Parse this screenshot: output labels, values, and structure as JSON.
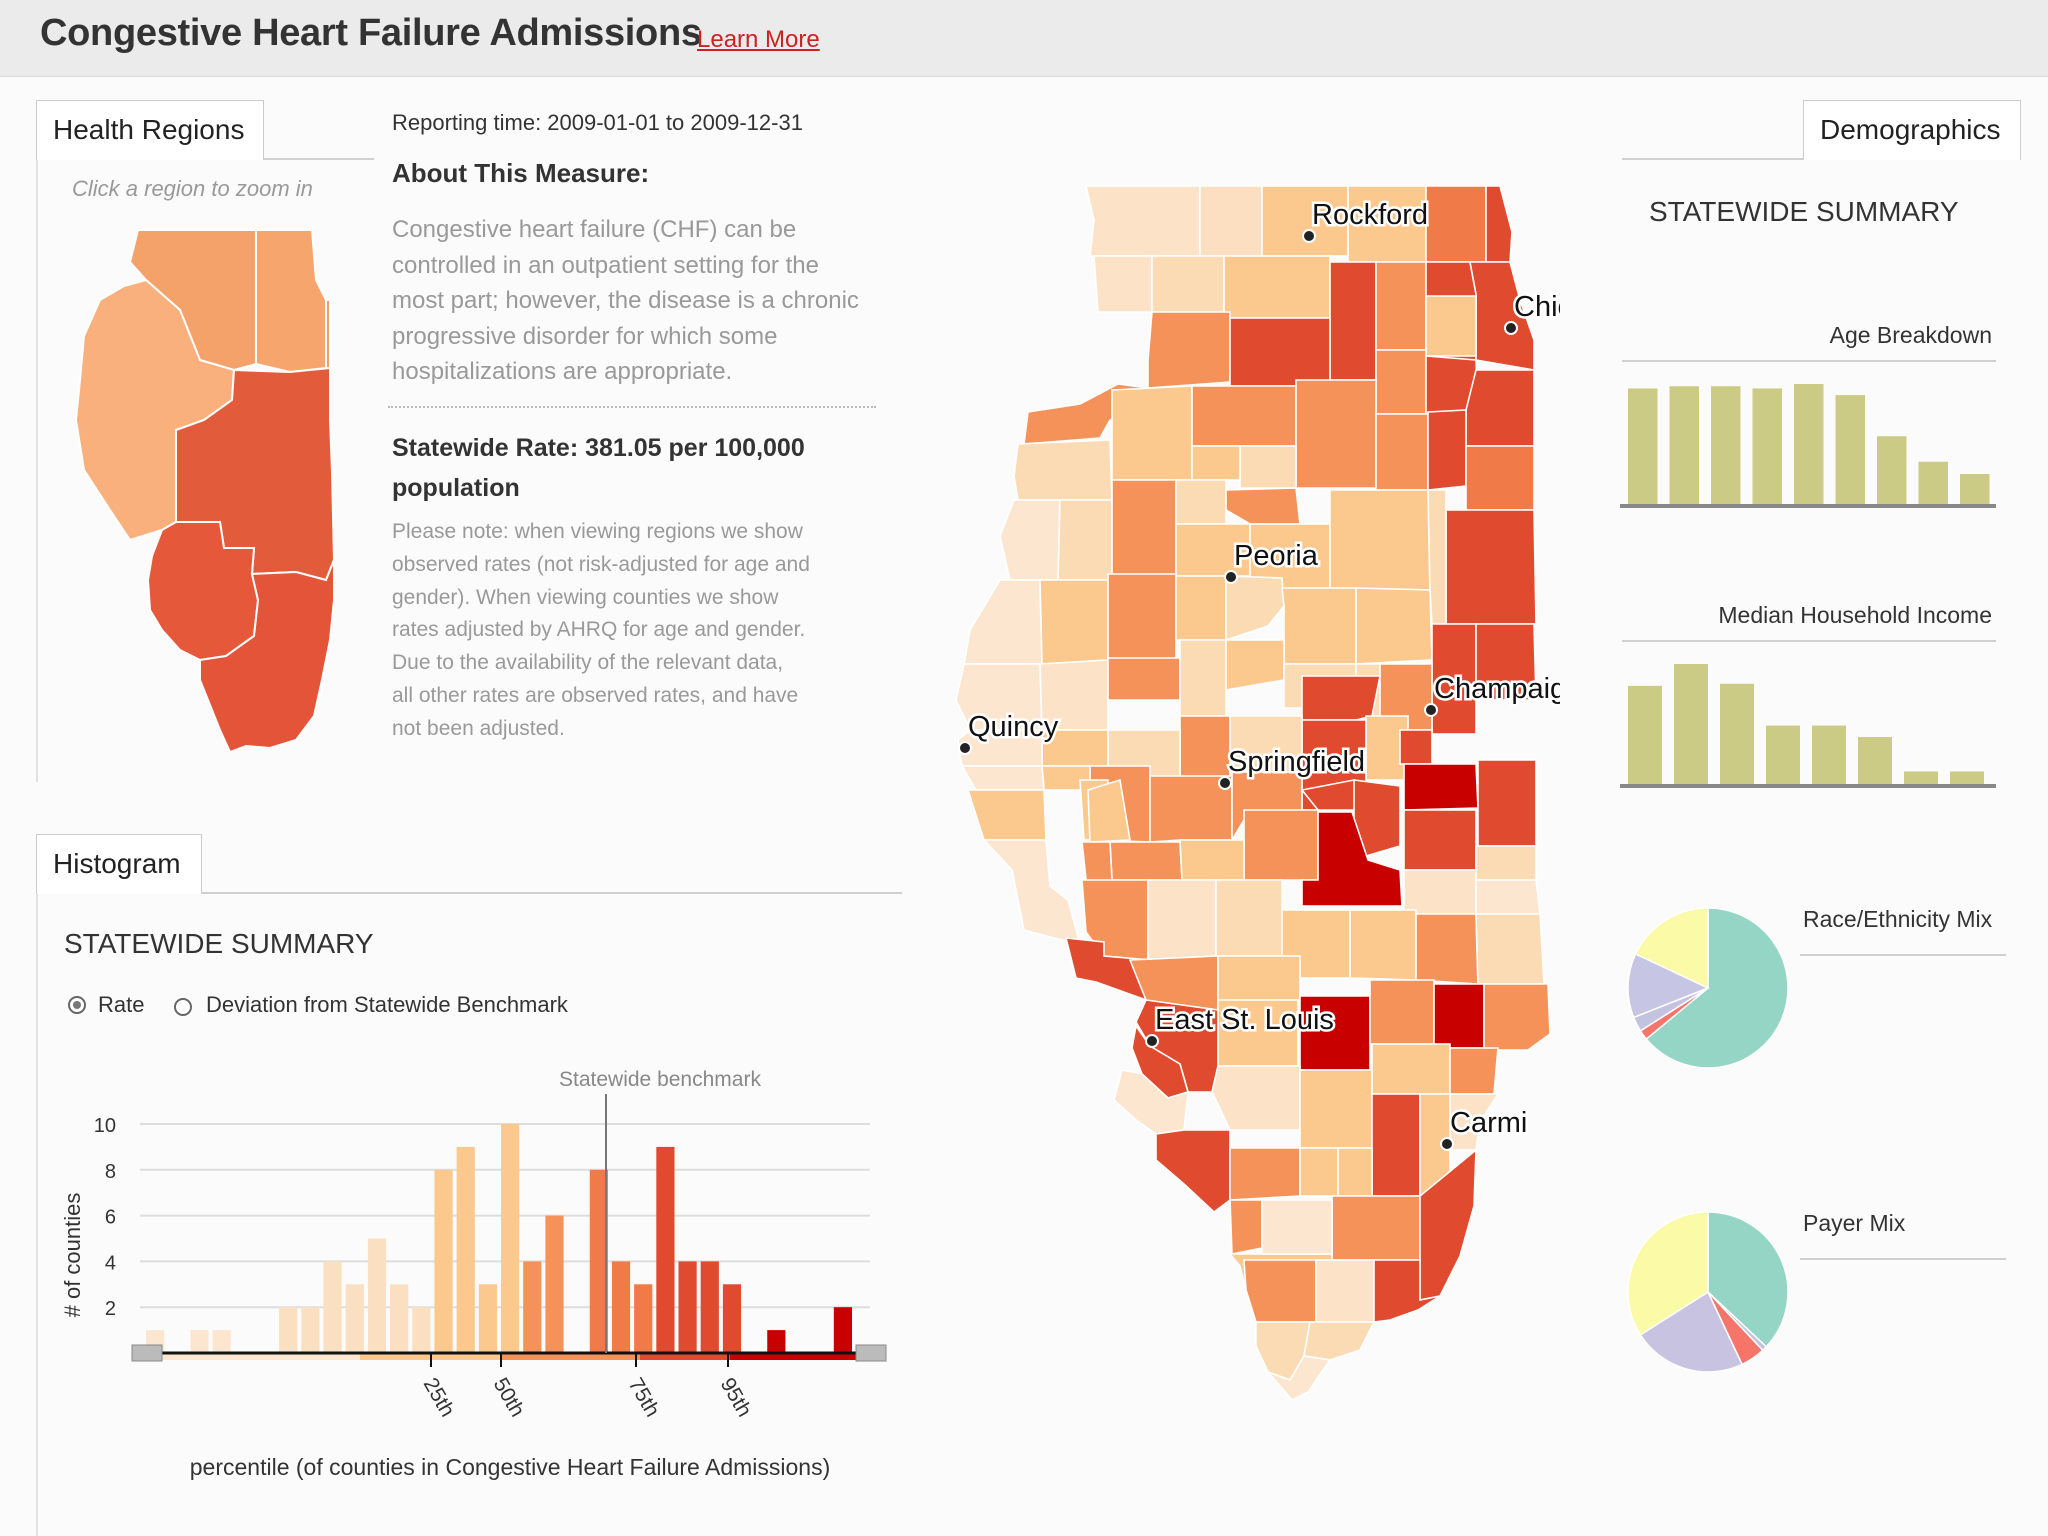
{
  "header": {
    "title": "Congestive Heart Failure Admissions",
    "learn_more": "Learn More"
  },
  "regions_panel": {
    "tab": "Health Regions",
    "hint": "Click a region to zoom  in",
    "regions": [
      {
        "name": "region-northwest",
        "color": "#f4a26a"
      },
      {
        "name": "region-north",
        "color": "#f6a56c"
      },
      {
        "name": "region-northeast",
        "color": "#f59b61"
      },
      {
        "name": "region-west",
        "color": "#f9b07c"
      },
      {
        "name": "region-central",
        "color": "#e25c3c"
      },
      {
        "name": "region-southwest",
        "color": "#e6583a"
      },
      {
        "name": "region-southeast",
        "color": "#e45439"
      }
    ]
  },
  "info": {
    "reporting": "Reporting time: 2009-01-01 to 2009-12-31",
    "about_title": "About This Measure:",
    "about_lines": [
      "Congestive heart failure (CHF) can be",
      "controlled in an outpatient setting for the",
      "most part; however, the disease is a chronic",
      "progressive disorder for which some",
      "hospitalizations are appropriate."
    ],
    "statewide_line1": "Statewide Rate: 381.05 per 100,000",
    "statewide_line2": "population",
    "note_lines": [
      "Please note: when viewing regions we show",
      "observed rates (not risk-adjusted for age and",
      "gender). When viewing counties we show",
      "rates adjusted by AHRQ for age and gender.",
      "Due to the availability of the relevant data,",
      "all other rates are observed rates, and have",
      "not been adjusted."
    ]
  },
  "histogram_panel": {
    "tab": "Histogram",
    "summary_title": "STATEWIDE SUMMARY",
    "radio_rate": "Rate",
    "radio_deviation": "Deviation from Statewide Benchmark",
    "benchmark_label": "Statewide benchmark",
    "percentile_ticks": [
      "25th",
      "50th",
      "75th",
      "95th"
    ]
  },
  "map": {
    "cities": [
      "Rockford",
      "Chicago",
      "Peoria",
      "Champaign",
      "Quincy",
      "Springfield",
      "East St. Louis",
      "Carmi"
    ]
  },
  "demographics": {
    "tab": "Demographics",
    "summary_title": "STATEWIDE SUMMARY",
    "age_title": "Age Breakdown",
    "income_title": "Median Household Income",
    "race_title": "Race/Ethnicity Mix",
    "payer_title": "Payer Mix",
    "bar_color": "#cbcb85"
  },
  "chart_data": [
    {
      "type": "bar",
      "title": "",
      "xlabel": "percentile (of counties in Congestive Heart Failure Admissions)",
      "ylabel": "# of counties",
      "ylim": [
        0,
        10
      ],
      "yticks": [
        2,
        4,
        6,
        8,
        10
      ],
      "grid": true,
      "benchmark_label": "Statewide benchmark",
      "values": [
        1,
        0,
        1,
        1,
        0,
        0,
        2,
        2,
        4,
        3,
        5,
        3,
        2,
        8,
        9,
        3,
        10,
        4,
        6,
        0,
        8,
        4,
        3,
        9,
        4,
        4,
        3,
        0,
        1,
        0,
        0,
        2
      ],
      "colors": [
        "#fce6cf",
        "#fce6cf",
        "#fce6cf",
        "#fce6cf",
        "#fce6cf",
        "#fce6cf",
        "#fbdfc1",
        "#fbdfc1",
        "#fbdfc1",
        "#fbdfc1",
        "#fbdfc1",
        "#fbdfc1",
        "#fbdfc1",
        "#fbc98e",
        "#fbc98e",
        "#fbc98e",
        "#fbc98e",
        "#f5925a",
        "#f5925a",
        "#f5925a",
        "#f07a48",
        "#f07a48",
        "#f07a48",
        "#e04a2e",
        "#e04a2e",
        "#e04a2e",
        "#e04a2e",
        "#c80000",
        "#c80000",
        "#c80000",
        "#c80000",
        "#c80000"
      ]
    },
    {
      "type": "bar",
      "title": "Age Breakdown",
      "values": [
        104,
        106,
        106,
        104,
        108,
        98,
        61,
        38,
        27
      ]
    },
    {
      "type": "bar",
      "title": "Median Household Income",
      "values": [
        94,
        115,
        96,
        56,
        56,
        45,
        12,
        12
      ]
    },
    {
      "type": "pie",
      "title": "Race/Ethnicity Mix",
      "values": [
        64,
        2,
        3,
        13,
        18
      ],
      "colors": [
        "#95d5c5",
        "#f5756b",
        "#c3c3e0",
        "#c6c5e3",
        "#fbfba7"
      ]
    },
    {
      "type": "pie",
      "title": "Payer Mix",
      "values": [
        37,
        1,
        5,
        23,
        34
      ],
      "colors": [
        "#95d5c5",
        "#c3c3e0",
        "#f5756b",
        "#c8c3e0",
        "#fbfba7"
      ]
    }
  ]
}
